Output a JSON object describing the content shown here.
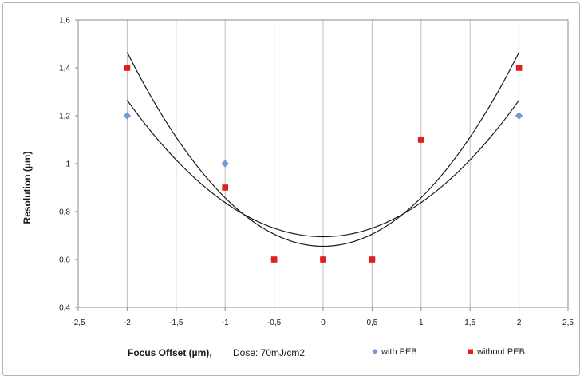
{
  "chart_data": {
    "type": "scatter",
    "xlabel": "Focus Offset (µm),",
    "ylabel": "Resolution (µm)",
    "annotation": "Dose: 70mJ/cm2",
    "xlim": [
      -2.5,
      2.5
    ],
    "ylim": [
      0.4,
      1.6
    ],
    "x_ticks": [
      -2.5,
      -2,
      -1.5,
      -1,
      -0.5,
      0,
      0.5,
      1,
      1.5,
      2,
      2.5
    ],
    "y_ticks": [
      0.4,
      0.6,
      0.8,
      1,
      1.2,
      1.4,
      1.6
    ],
    "x_tick_labels": [
      "-2,5",
      "-2",
      "-1,5",
      "-1",
      "-0,5",
      "0",
      "0,5",
      "1",
      "1,5",
      "2",
      "2,5"
    ],
    "y_tick_labels": [
      "0,4",
      "0,6",
      "0,8",
      "1",
      "1,2",
      "1,4",
      "1,6"
    ],
    "grid": "vertical",
    "legend_position": "bottom-right",
    "series": [
      {
        "name": "with PEB",
        "marker": "diamond",
        "color": "#6f9ad6",
        "x": [
          -2,
          -1,
          -0.5,
          0,
          0.5,
          1,
          2
        ],
        "y": [
          1.2,
          1.0,
          0.6,
          0.6,
          0.6,
          1.1,
          1.2
        ]
      },
      {
        "name": "without PEB",
        "marker": "square",
        "color": "#e0201b",
        "x": [
          -2,
          -1,
          -0.5,
          0,
          0.5,
          1,
          2
        ],
        "y": [
          1.4,
          0.9,
          0.6,
          0.6,
          0.6,
          1.1,
          1.4
        ]
      }
    ],
    "trendlines": [
      {
        "for": "with PEB",
        "type": "polynomial-2",
        "x_range": [
          -2,
          2
        ],
        "coefficients": [
          0.695,
          0.0,
          0.1425
        ],
        "color": "#1a1a1a"
      },
      {
        "for": "without PEB",
        "type": "polynomial-2",
        "x_range": [
          -2,
          2
        ],
        "coefficients": [
          0.655,
          0.0,
          0.2025
        ],
        "color": "#1a1a1a"
      }
    ]
  }
}
